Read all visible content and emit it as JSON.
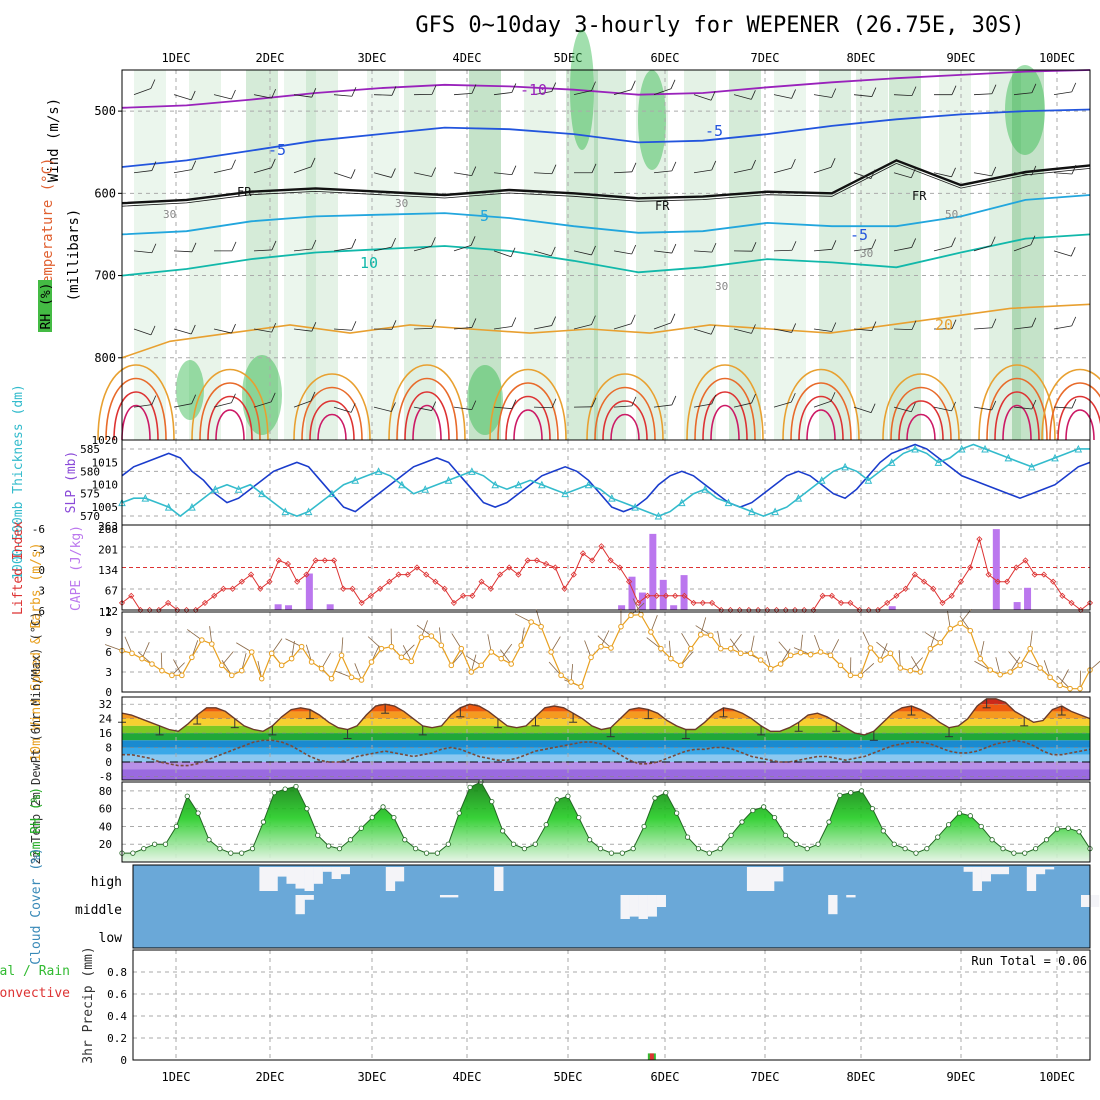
{
  "title": "GFS 0~10day 3-hourly for WEPENER (26.75E, 30S)",
  "days": [
    "1DEC",
    "2DEC",
    "3DEC",
    "4DEC",
    "5DEC",
    "6DEC",
    "7DEC",
    "8DEC",
    "9DEC",
    "10DEC"
  ],
  "colors": {
    "slp": "#1a3ccc",
    "thickness": "#33bbcc",
    "lifted_index": "#dd3333",
    "cape": "#bb77ee",
    "wind_speed": "#e8a020",
    "barb": "#886644",
    "cloud_bg": "#6aa8d8",
    "cloud_gap": "#f4f4f8",
    "rh_fill": "#22bb22",
    "precip_total": "#33bb33",
    "precip_conv": "#dd3333"
  },
  "chart_data": [
    {
      "id": "upper_air",
      "type": "heatmap",
      "ylabel": "(millibars)",
      "side_labels": [
        "Wind (m/s)",
        "Temperature (°C)",
        "RH (%)"
      ],
      "y_ticks": [
        500,
        600,
        700,
        800
      ],
      "ylim": [
        900,
        450
      ],
      "contour_labels": [
        "-10",
        "-5",
        "-5",
        "FR",
        "FR",
        "FR",
        "5",
        "-5",
        "10",
        "20",
        "30",
        "30",
        "30",
        "30",
        "50"
      ],
      "isotherms": [
        {
          "t": -10,
          "color": "#9922bb",
          "p": [
            496,
            493,
            486,
            478,
            472,
            468,
            470,
            474,
            480,
            478,
            471,
            465,
            460,
            456,
            452,
            450
          ]
        },
        {
          "t": -5,
          "color": "#2255dd",
          "p": [
            568,
            560,
            548,
            536,
            528,
            520,
            522,
            528,
            538,
            536,
            528,
            518,
            510,
            504,
            500,
            498
          ]
        },
        {
          "t": 0,
          "color": "#111111",
          "p": [
            612,
            608,
            598,
            594,
            598,
            602,
            596,
            600,
            606,
            604,
            598,
            600,
            560,
            590,
            574,
            566
          ]
        },
        {
          "t": 5,
          "color": "#22a6dd",
          "p": [
            650,
            646,
            634,
            628,
            626,
            624,
            630,
            640,
            648,
            646,
            636,
            640,
            640,
            628,
            608,
            602
          ]
        },
        {
          "t": 10,
          "color": "#11b8aa",
          "p": [
            700,
            692,
            680,
            672,
            668,
            664,
            670,
            682,
            696,
            690,
            680,
            684,
            690,
            672,
            655,
            650
          ]
        }
      ]
    },
    {
      "id": "slp_thickness",
      "type": "line",
      "left_label": "1000-500mb Thickness (dm)",
      "right_label": "SLP (mb)",
      "left_ticks": [
        570,
        575,
        580,
        585
      ],
      "right_ticks": [
        1005,
        1010,
        1015,
        1020
      ],
      "extra_tick": 263,
      "ylim_thickness": [
        568,
        587
      ],
      "ylim_slp": [
        1001,
        1020
      ],
      "series": [
        {
          "key": "slp",
          "values": [
            1012,
            1014,
            1015,
            1016,
            1017,
            1016,
            1013,
            1011,
            1008,
            1006,
            1007,
            1009,
            1011,
            1013,
            1014,
            1015,
            1014,
            1011,
            1008,
            1005,
            1004,
            1006,
            1008,
            1010,
            1012,
            1014,
            1015,
            1016,
            1015,
            1012,
            1009,
            1006,
            1005,
            1006,
            1008,
            1010,
            1012,
            1013,
            1014,
            1013,
            1011,
            1008,
            1005,
            1004,
            1005,
            1007,
            1010,
            1012,
            1013,
            1012,
            1010,
            1008,
            1006,
            1005,
            1006,
            1008,
            1010,
            1012,
            1013,
            1012,
            1010,
            1008,
            1007,
            1009,
            1012,
            1015,
            1017,
            1018,
            1019,
            1018,
            1016,
            1014,
            1012,
            1011,
            1010,
            1009,
            1008,
            1007,
            1008,
            1009,
            1010,
            1012,
            1014,
            1015
          ]
        },
        {
          "key": "thickness",
          "values": [
            573,
            574,
            574,
            573,
            572,
            570,
            572,
            574,
            576,
            577,
            576,
            577,
            575,
            573,
            571,
            570,
            571,
            573,
            575,
            577,
            578,
            579,
            580,
            579,
            577,
            575,
            576,
            577,
            578,
            579,
            580,
            579,
            577,
            576,
            577,
            578,
            577,
            576,
            575,
            576,
            577,
            576,
            574,
            573,
            572,
            571,
            570,
            571,
            573,
            575,
            576,
            574,
            573,
            572,
            571,
            570,
            571,
            572,
            574,
            576,
            578,
            580,
            581,
            580,
            578,
            580,
            582,
            584,
            585,
            584,
            582,
            583,
            585,
            586,
            585,
            584,
            583,
            582,
            581,
            582,
            583,
            584,
            585,
            585
          ]
        }
      ]
    },
    {
      "id": "cape_li",
      "type": "bar",
      "left_label": "Lifted Index",
      "right_label": "CAPE (J/kg)",
      "li_ticks": [
        "-6",
        "-3",
        "0",
        "3",
        "6"
      ],
      "cape_ticks": [
        "268",
        "201",
        "134",
        "67",
        "12"
      ],
      "li_range": [
        -6,
        6
      ],
      "cape_range": [
        12,
        268
      ],
      "cape": [
        0,
        0,
        0,
        0,
        0,
        0,
        0,
        0,
        0,
        0,
        0,
        0,
        0,
        0,
        0,
        18,
        15,
        0,
        115,
        0,
        18,
        0,
        0,
        0,
        0,
        0,
        0,
        0,
        0,
        0,
        0,
        0,
        0,
        0,
        0,
        0,
        0,
        0,
        0,
        0,
        0,
        0,
        0,
        0,
        0,
        0,
        0,
        0,
        15,
        105,
        55,
        240,
        95,
        15,
        110,
        0,
        0,
        0,
        0,
        0,
        0,
        0,
        0,
        0,
        0,
        0,
        0,
        0,
        0,
        0,
        0,
        0,
        0,
        0,
        12,
        0,
        0,
        0,
        0,
        0,
        0,
        0,
        0,
        0,
        255,
        0,
        25,
        70,
        0,
        0,
        0,
        0,
        0,
        0
      ],
      "lifted_index": [
        5,
        4,
        6,
        6,
        6,
        5,
        6,
        6,
        6,
        5,
        4,
        3,
        3,
        2,
        1,
        3,
        2,
        -1,
        -0.5,
        2,
        1,
        -1,
        -1,
        -1,
        3,
        3,
        5,
        4,
        3,
        2,
        1,
        1,
        0,
        1,
        2,
        3,
        5,
        4,
        4,
        2,
        3,
        1,
        0,
        1,
        -1,
        -1,
        -0.5,
        0,
        3,
        1,
        -2,
        -1,
        -3,
        -1,
        0,
        2,
        5,
        4,
        4,
        4,
        4,
        4,
        5,
        5,
        5,
        6,
        6,
        6,
        6,
        6,
        6,
        6,
        6,
        6,
        6,
        6,
        4,
        4,
        5,
        5,
        6,
        6,
        6,
        5,
        4,
        3,
        1,
        2,
        3,
        5,
        4,
        2,
        0,
        -4,
        1,
        2,
        2,
        0,
        -1,
        1,
        1,
        2,
        4,
        5,
        6,
        5
      ]
    },
    {
      "id": "wind10m",
      "type": "line",
      "left_label": "10m Wind Speed & Barbs (m/s)",
      "y_ticks": [
        0,
        3,
        6,
        9,
        12
      ],
      "ylim": [
        0,
        12
      ],
      "values": [
        6.2,
        5.8,
        5.0,
        4.2,
        3.2,
        2.5,
        2.5,
        5.2,
        7.8,
        7.2,
        4.0,
        2.5,
        3.2,
        6.0,
        2.0,
        5.8,
        4.0,
        5.0,
        6.8,
        4.5,
        3.5,
        2.0,
        5.5,
        2.2,
        1.8,
        4.5,
        6.5,
        6.8,
        5.2,
        4.6,
        8.2,
        8.4,
        7.0,
        4.0,
        6.5,
        3.0,
        4.0,
        6.0,
        5.0,
        4.2,
        7.0,
        10.5,
        9.8,
        6.0,
        2.5,
        1.5,
        0.8,
        5.2,
        6.8,
        6.6,
        9.8,
        11.5,
        11.6,
        9.0,
        6.5,
        5.0,
        4.0,
        6.5,
        8.6,
        8.5,
        6.5,
        6.5,
        5.8,
        5.8,
        4.8,
        3.5,
        4.2,
        5.5,
        5.9,
        5.6,
        6.0,
        5.5,
        4.0,
        2.5,
        2.5,
        6.6,
        4.8,
        5.8,
        3.6,
        3.2,
        3.0,
        6.5,
        7.4,
        9.5,
        10.3,
        9.2,
        5.0,
        3.3,
        2.6,
        3.0,
        4.0,
        6.5,
        3.6,
        2.2,
        1.0,
        0.5,
        0.5,
        3.3
      ]
    },
    {
      "id": "temp2m",
      "type": "area",
      "left_label": "2m Temp 2m DewPt (6hr Min/Max) (°C)",
      "y_ticks": [
        32,
        24,
        16,
        8,
        0,
        -8
      ],
      "ylim": [
        -10,
        36
      ],
      "temp": [
        27,
        26,
        24,
        22,
        20,
        18,
        17,
        21,
        26,
        30,
        30,
        28,
        24,
        20,
        18,
        17,
        20,
        25,
        29,
        30,
        29,
        26,
        22,
        19,
        18,
        20,
        26,
        31,
        32,
        31,
        28,
        24,
        20,
        19,
        20,
        26,
        30,
        32,
        31,
        28,
        24,
        20,
        19,
        20,
        25,
        30,
        31,
        30,
        27,
        24,
        20,
        18,
        19,
        24,
        29,
        30,
        29,
        27,
        23,
        20,
        18,
        18,
        22,
        27,
        30,
        29,
        27,
        24,
        20,
        17,
        17,
        19,
        22,
        26,
        27,
        25,
        22,
        19,
        16,
        15,
        17,
        22,
        27,
        30,
        31,
        29,
        26,
        22,
        19,
        20,
        24,
        31,
        35,
        35,
        33,
        28,
        25,
        22,
        23,
        29,
        31,
        28,
        26,
        24
      ],
      "dewpt": [
        4,
        4,
        3,
        2,
        0,
        -1,
        -2,
        -2,
        -1,
        1,
        3,
        5,
        7,
        9,
        11,
        12,
        12,
        11,
        9,
        6,
        3,
        1,
        0,
        0,
        1,
        3,
        4,
        5,
        6,
        5,
        4,
        3,
        4,
        5,
        7,
        8,
        7,
        5,
        3,
        2,
        1,
        1,
        2,
        4,
        6,
        7,
        8,
        9,
        10,
        11,
        11,
        10,
        7,
        4,
        1,
        -1,
        -1,
        0,
        2,
        4,
        6,
        7,
        7,
        8,
        8,
        7,
        5,
        3,
        2,
        1,
        0,
        0,
        1,
        2,
        3,
        3,
        2,
        1,
        2,
        3,
        5,
        7,
        9,
        10,
        11,
        11,
        10,
        8,
        6,
        5,
        5,
        6,
        8,
        10,
        11,
        12,
        11,
        9,
        6,
        4,
        4,
        5,
        6,
        7
      ]
    },
    {
      "id": "rh2m",
      "type": "area",
      "left_label": "2m RH (%)",
      "y_ticks": [
        20,
        40,
        60,
        80
      ],
      "ylim": [
        0,
        90
      ],
      "values": [
        10,
        10,
        15,
        20,
        20,
        40,
        74,
        55,
        25,
        15,
        10,
        10,
        15,
        45,
        78,
        82,
        85,
        60,
        30,
        18,
        15,
        25,
        38,
        50,
        62,
        50,
        25,
        15,
        10,
        10,
        20,
        55,
        84,
        90,
        68,
        35,
        20,
        15,
        20,
        42,
        70,
        74,
        50,
        25,
        15,
        10,
        10,
        15,
        40,
        72,
        78,
        55,
        28,
        15,
        10,
        15,
        30,
        45,
        58,
        62,
        50,
        30,
        20,
        15,
        20,
        45,
        75,
        78,
        80,
        60,
        35,
        20,
        15,
        10,
        15,
        28,
        42,
        55,
        52,
        40,
        25,
        15,
        10,
        10,
        15,
        25,
        37,
        38,
        34,
        15
      ]
    },
    {
      "id": "cloud",
      "type": "table",
      "left_label": "Cloud Cover (%)",
      "levels": [
        "high",
        "middle",
        "low"
      ],
      "high": [
        0,
        0,
        0,
        0,
        0,
        0,
        0,
        0,
        0,
        0,
        0,
        0,
        0,
        0,
        1,
        1,
        0.4,
        0.7,
        0.9,
        1,
        0.7,
        0.2,
        0.5,
        0.3,
        0,
        0,
        0,
        0,
        1,
        0.6,
        0,
        0,
        0,
        0,
        0,
        0,
        0,
        0,
        0,
        0,
        1,
        0,
        0,
        0,
        0,
        0,
        0,
        0,
        0,
        0,
        0,
        0,
        0,
        0,
        0,
        0,
        0,
        0,
        0,
        0,
        0,
        0,
        0,
        0,
        0,
        0,
        0,
        0,
        1,
        1,
        1,
        0.6,
        0,
        0,
        0,
        0,
        0,
        0,
        0,
        0,
        0,
        0,
        0,
        0,
        0,
        0,
        0,
        0,
        0,
        0,
        0,
        0,
        0.2,
        1,
        0.6,
        0.3,
        0.3,
        0,
        0,
        1,
        0.3,
        0.1,
        0,
        0,
        0,
        0
      ],
      "middle": [
        0,
        0,
        0,
        0,
        0,
        0,
        0,
        0,
        0,
        0,
        0,
        0,
        0,
        0,
        0,
        0,
        0,
        0,
        0.8,
        0.2,
        0,
        0,
        0,
        0,
        0,
        0,
        0,
        0,
        0,
        0,
        0,
        0,
        0,
        0,
        0.1,
        0.1,
        0,
        0,
        0,
        0,
        0,
        0,
        0,
        0,
        0,
        0,
        0,
        0,
        0,
        0,
        0,
        0,
        0,
        0,
        1,
        0.9,
        1,
        0.9,
        0.5,
        0,
        0,
        0,
        0,
        0,
        0,
        0,
        0,
        0,
        0,
        0,
        0,
        0,
        0,
        0,
        0,
        0,
        0,
        0.8,
        0,
        0.1,
        0,
        0,
        0,
        0,
        0,
        0,
        0,
        0,
        0,
        0,
        0,
        0,
        0,
        0,
        0,
        0,
        0,
        0,
        0,
        0,
        0,
        0,
        0,
        0,
        0,
        0.5,
        0.5,
        0,
        0
      ]
    },
    {
      "id": "precip",
      "type": "bar",
      "left_label": "3hr Precip (mm)",
      "legend": [
        "Total / Rain",
        "Convective"
      ],
      "run_total": "Run Total = 0.06",
      "y_ticks": [
        "0",
        "0.2",
        "0.4",
        "0.6",
        "0.8"
      ],
      "ylim": [
        0,
        1.0
      ],
      "bars": [
        {
          "index": 52,
          "total": 0.06,
          "convective": 0.06
        }
      ]
    }
  ]
}
